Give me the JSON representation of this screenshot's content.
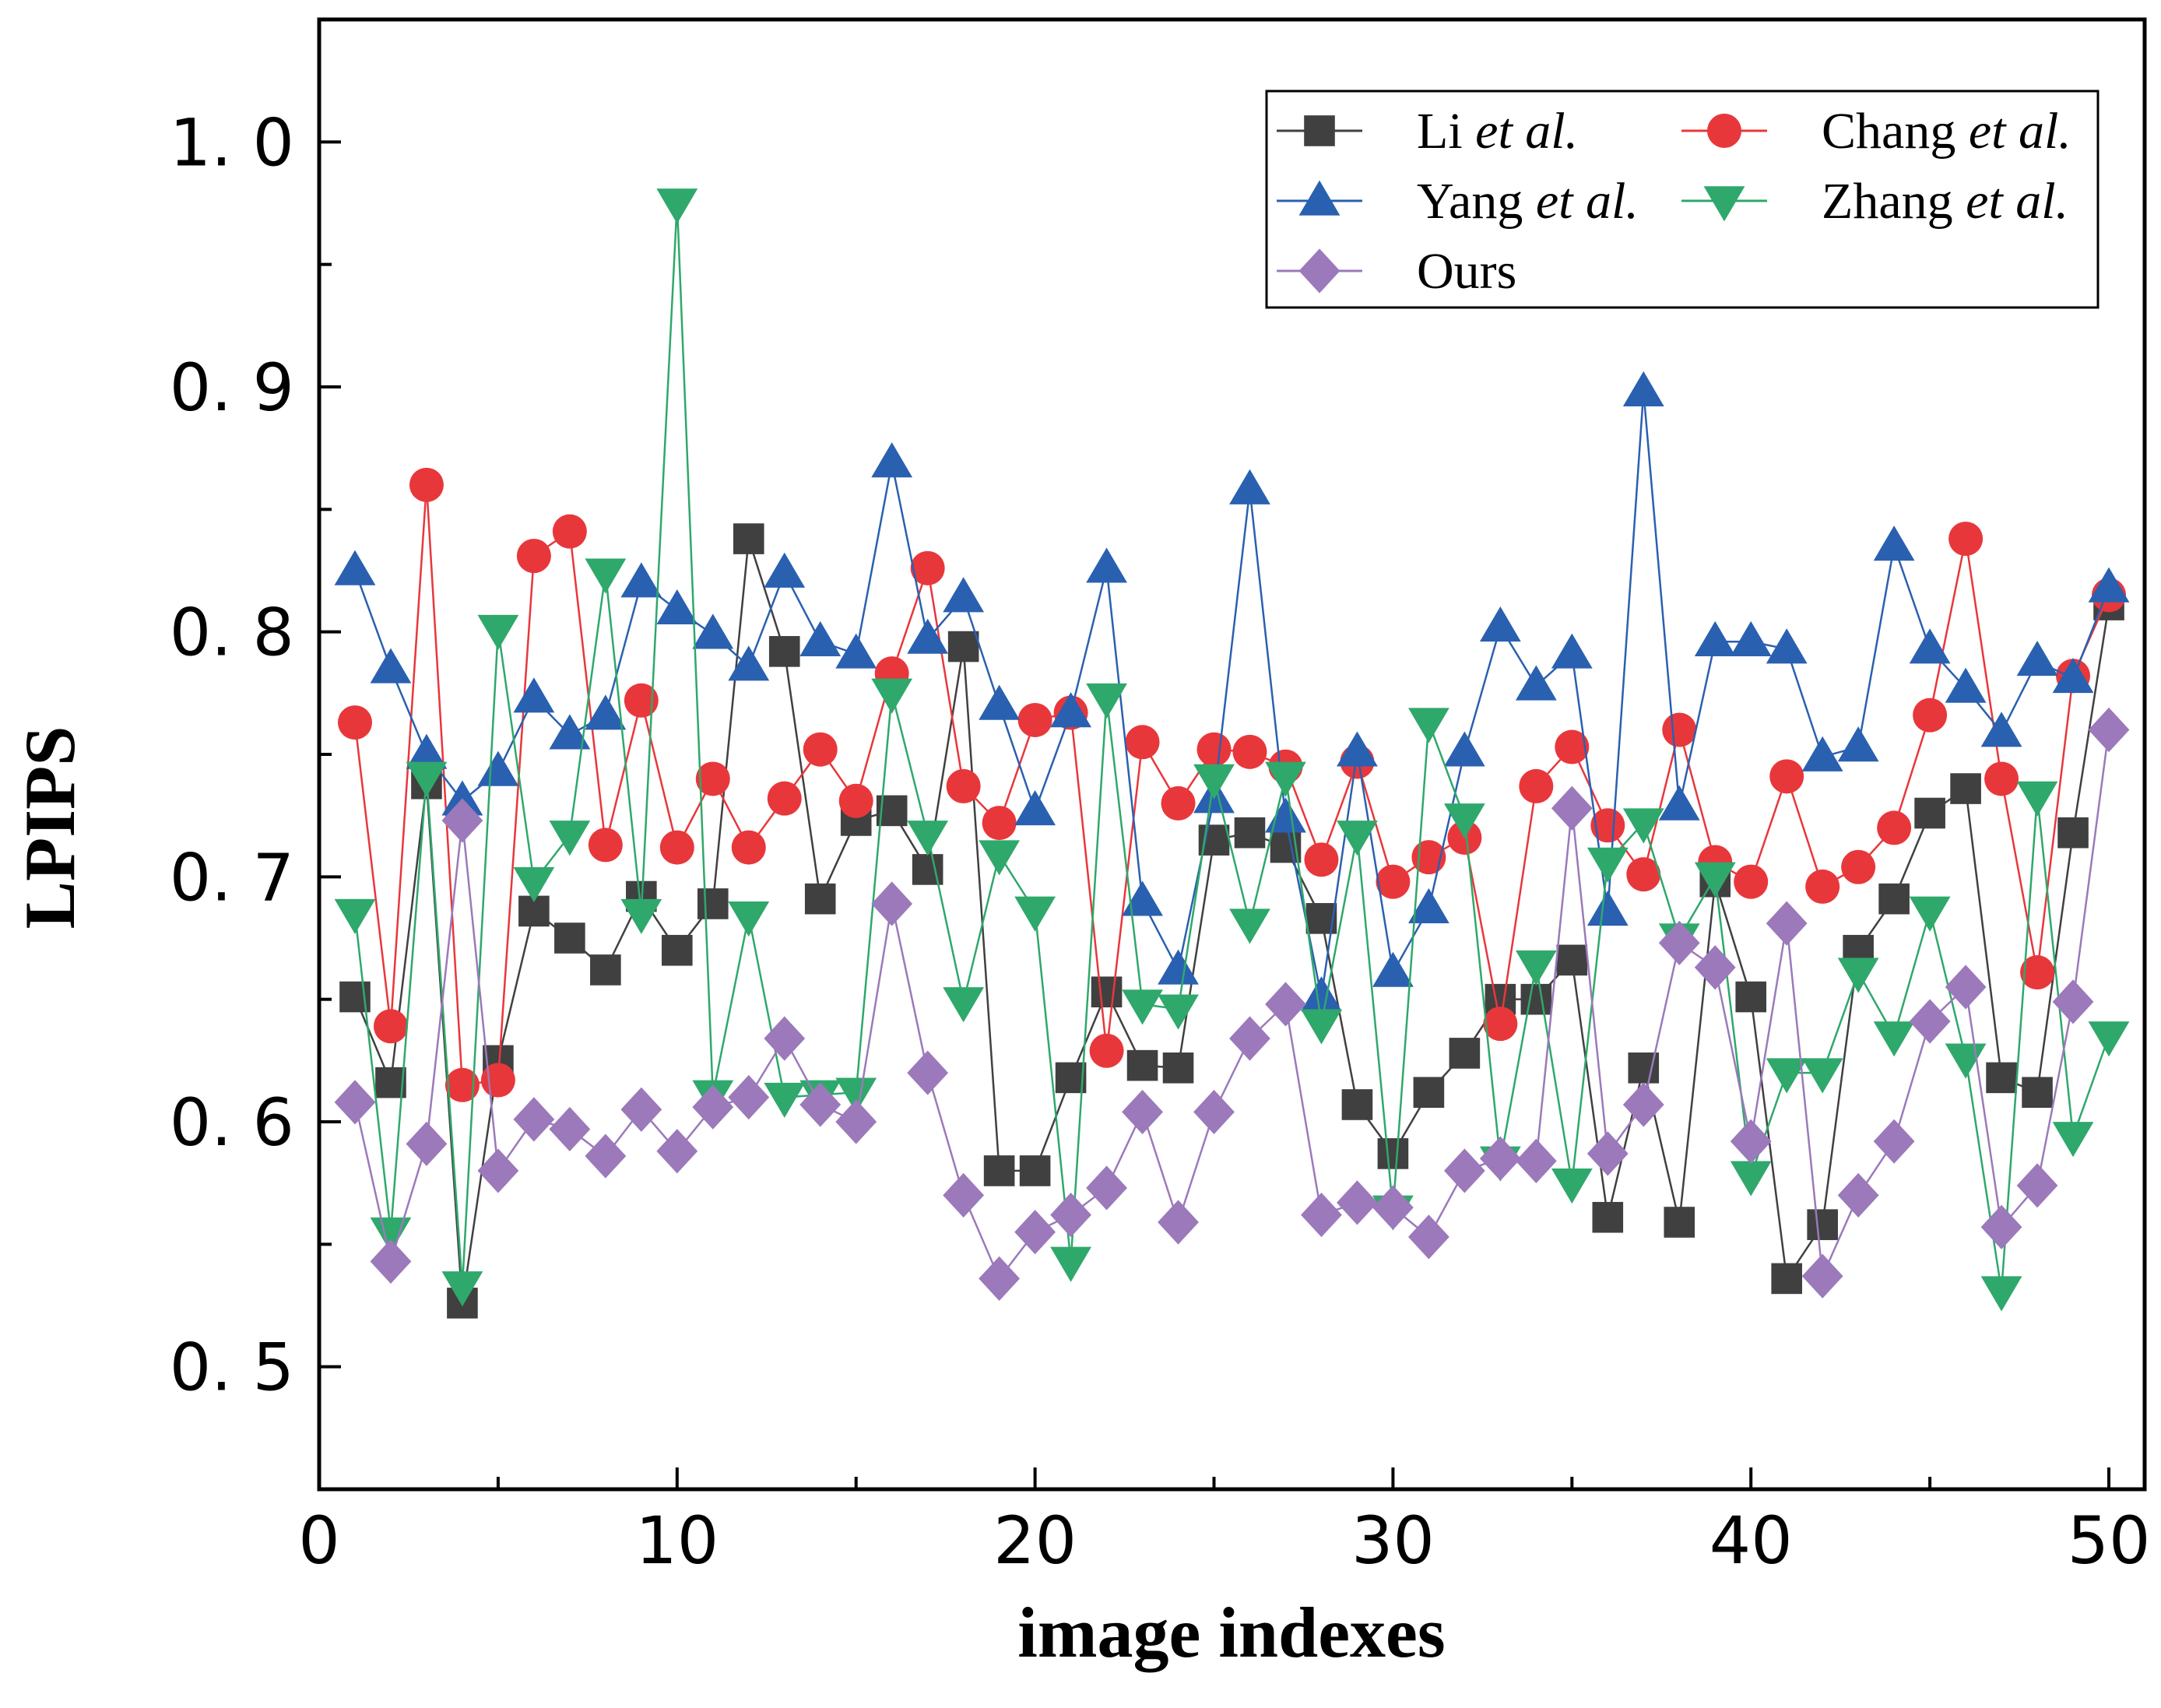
{
  "chart_data": {
    "type": "line",
    "title": "",
    "xlabel": "image indexes",
    "ylabel": "LPIPS",
    "xlim": [
      0,
      51
    ],
    "ylim": [
      0.45,
      1.05
    ],
    "x_ticks": [
      0,
      10,
      20,
      30,
      40,
      50
    ],
    "x_tick_labels": [
      "0",
      "10",
      "20",
      "30",
      "40",
      "50"
    ],
    "y_ticks": [
      0.5,
      0.6,
      0.7,
      0.8,
      0.9,
      1.0
    ],
    "y_tick_labels": [
      "0. 5",
      "0. 6",
      "0. 7",
      "0. 8",
      "0. 9",
      "1. 0"
    ],
    "legend_position": "top-right",
    "x": [
      1,
      2,
      3,
      4,
      5,
      6,
      7,
      8,
      9,
      10,
      11,
      12,
      13,
      14,
      15,
      16,
      17,
      18,
      19,
      20,
      21,
      22,
      23,
      24,
      25,
      26,
      27,
      28,
      29,
      30,
      31,
      32,
      33,
      34,
      35,
      36,
      37,
      38,
      39,
      40,
      41,
      42,
      43,
      44,
      45,
      46,
      47,
      48,
      49,
      50
    ],
    "series": [
      {
        "name": "Li",
        "name_suffix": "et al.",
        "color": "#404040",
        "marker": "square",
        "values": [
          0.651,
          0.616,
          0.738,
          0.526,
          0.625,
          0.686,
          0.675,
          0.662,
          0.692,
          0.67,
          0.689,
          0.838,
          0.792,
          0.691,
          0.723,
          0.727,
          0.703,
          0.794,
          0.58,
          0.58,
          0.618,
          0.653,
          0.623,
          0.622,
          0.715,
          0.718,
          0.712,
          0.683,
          0.607,
          0.587,
          0.612,
          0.628,
          0.65,
          0.65,
          0.666,
          0.561,
          0.622,
          0.559,
          0.698,
          0.651,
          0.536,
          0.558,
          0.67,
          0.691,
          0.726,
          0.736,
          0.618,
          0.612,
          0.718,
          0.811
        ]
      },
      {
        "name": "Chang",
        "name_suffix": "et al.",
        "color": "#e8373b",
        "marker": "circle",
        "values": [
          0.763,
          0.639,
          0.86,
          0.615,
          0.617,
          0.831,
          0.841,
          0.713,
          0.772,
          0.712,
          0.74,
          0.712,
          0.732,
          0.752,
          0.731,
          0.783,
          0.826,
          0.737,
          0.722,
          0.764,
          0.767,
          0.629,
          0.755,
          0.73,
          0.752,
          0.751,
          0.745,
          0.707,
          0.747,
          0.698,
          0.708,
          0.716,
          0.64,
          0.737,
          0.753,
          0.721,
          0.701,
          0.76,
          0.706,
          0.698,
          0.741,
          0.696,
          0.704,
          0.72,
          0.766,
          0.838,
          0.74,
          0.661,
          0.782,
          0.815
        ]
      },
      {
        "name": "Yang",
        "name_suffix": "et al.",
        "color": "#2a60b0",
        "marker": "triangle-up",
        "values": [
          0.825,
          0.785,
          0.75,
          0.731,
          0.743,
          0.773,
          0.758,
          0.766,
          0.82,
          0.809,
          0.799,
          0.786,
          0.824,
          0.796,
          0.791,
          0.869,
          0.797,
          0.814,
          0.77,
          0.727,
          0.767,
          0.826,
          0.69,
          0.662,
          0.732,
          0.858,
          0.724,
          0.651,
          0.751,
          0.661,
          0.687,
          0.751,
          0.802,
          0.778,
          0.791,
          0.686,
          0.898,
          0.729,
          0.796,
          0.796,
          0.793,
          0.749,
          0.753,
          0.835,
          0.793,
          0.777,
          0.759,
          0.788,
          0.781,
          0.818
        ]
      },
      {
        "name": "Zhang",
        "name_suffix": "et al.",
        "color": "#2fa86b",
        "marker": "triangle-down",
        "values": [
          0.685,
          0.555,
          0.741,
          0.533,
          0.801,
          0.698,
          0.717,
          0.824,
          0.685,
          0.975,
          0.611,
          0.684,
          0.61,
          0.611,
          0.612,
          0.775,
          0.717,
          0.649,
          0.709,
          0.686,
          0.543,
          0.773,
          0.648,
          0.646,
          0.74,
          0.681,
          0.741,
          0.64,
          0.717,
          0.564,
          0.763,
          0.724,
          0.584,
          0.664,
          0.575,
          0.706,
          0.722,
          0.675,
          0.7,
          0.578,
          0.62,
          0.62,
          0.661,
          0.635,
          0.686,
          0.626,
          0.531,
          0.733,
          0.594,
          0.635
        ]
      },
      {
        "name": "Ours",
        "name_suffix": "",
        "color": "#9b79bb",
        "marker": "diamond",
        "values": [
          0.608,
          0.543,
          0.591,
          0.723,
          0.58,
          0.601,
          0.597,
          0.586,
          0.605,
          0.588,
          0.606,
          0.61,
          0.634,
          0.607,
          0.6,
          0.689,
          0.62,
          0.57,
          0.536,
          0.555,
          0.562,
          0.573,
          0.604,
          0.559,
          0.604,
          0.634,
          0.648,
          0.562,
          0.567,
          0.565,
          0.553,
          0.58,
          0.585,
          0.584,
          0.728,
          0.587,
          0.607,
          0.673,
          0.663,
          0.592,
          0.681,
          0.537,
          0.57,
          0.592,
          0.641,
          0.655,
          0.557,
          0.574,
          0.649,
          0.76
        ]
      }
    ]
  }
}
